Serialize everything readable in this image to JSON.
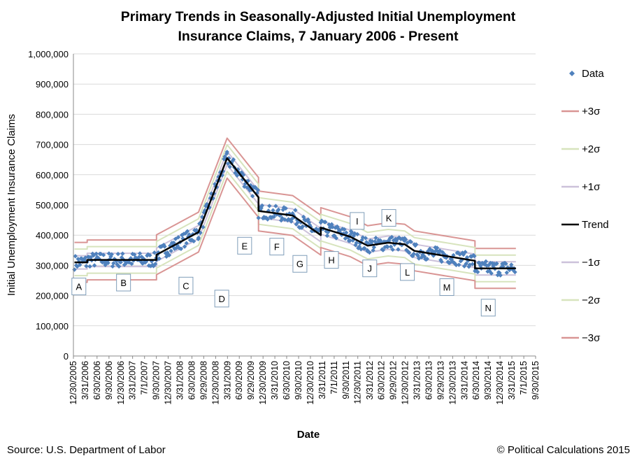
{
  "chart_data": {
    "type": "line",
    "title_line1": "Primary Trends in Seasonally-Adjusted Initial Unemployment",
    "title_line2": "Insurance Claims, 7 January 2006 - Present",
    "xlabel": "Date",
    "ylabel": "Initial Unemployment Insurance Claims",
    "ylim": [
      0,
      1000000
    ],
    "y_ticks": [
      0,
      100000,
      200000,
      300000,
      400000,
      500000,
      600000,
      700000,
      800000,
      900000,
      1000000
    ],
    "y_tick_labels": [
      "0",
      "100,000",
      "200,000",
      "300,000",
      "400,000",
      "500,000",
      "600,000",
      "700,000",
      "800,000",
      "900,000",
      "1,000,000"
    ],
    "x_range": [
      "2005-12-30",
      "2015-09-30"
    ],
    "x_tick_dates": [
      "2005-12-30",
      "2006-03-31",
      "2006-06-30",
      "2006-09-30",
      "2006-12-30",
      "2007-03-31",
      "2007-07-01",
      "2007-09-30",
      "2007-12-30",
      "2008-03-31",
      "2008-06-30",
      "2008-09-29",
      "2008-12-30",
      "2009-03-31",
      "2009-06-30",
      "2009-09-29",
      "2009-12-30",
      "2010-03-31",
      "2010-06-30",
      "2010-09-30",
      "2010-12-30",
      "2011-03-31",
      "2011-07-01",
      "2011-09-30",
      "2011-12-30",
      "2012-03-31",
      "2012-06-30",
      "2012-09-29",
      "2012-12-30",
      "2013-03-31",
      "2013-06-30",
      "2013-09-29",
      "2013-12-30",
      "2014-03-31",
      "2014-06-30",
      "2014-09-30",
      "2014-12-30",
      "2015-03-31",
      "2015-07-01",
      "2015-09-30"
    ],
    "x_tick_labels": [
      "12/30/2005",
      "3/31/2006",
      "6/30/2006",
      "9/30/2006",
      "12/30/2006",
      "3/31/2007",
      "7/1/2007",
      "9/30/2007",
      "12/30/2007",
      "3/31/2008",
      "6/30/2008",
      "9/29/2008",
      "12/30/2008",
      "3/31/2009",
      "6/30/2009",
      "9/29/2009",
      "12/30/2009",
      "3/31/2010",
      "6/30/2010",
      "9/30/2010",
      "12/30/2010",
      "3/31/2011",
      "7/1/2011",
      "9/30/2011",
      "12/30/2011",
      "3/31/2012",
      "6/30/2012",
      "9/29/2012",
      "12/30/2012",
      "3/31/2013",
      "6/30/2013",
      "9/29/2013",
      "12/30/2013",
      "3/31/2014",
      "6/30/2014",
      "9/30/2014",
      "12/30/2014",
      "3/31/2015",
      "7/1/2015",
      "9/30/2015"
    ],
    "grid": "horizontal",
    "legend_position": "right",
    "sigma": 22000,
    "trend_segments": [
      {
        "label": "A",
        "start": "2006-01-07",
        "end": "2006-04-15",
        "y_start": 310000,
        "y_end": 310000
      },
      {
        "label": "B",
        "start": "2006-04-15",
        "end": "2007-10-01",
        "y_start": 318000,
        "y_end": 318000
      },
      {
        "label": "C",
        "start": "2007-10-01",
        "end": "2008-08-20",
        "y_start": 335000,
        "y_end": 410000
      },
      {
        "label": "D",
        "start": "2008-08-20",
        "end": "2009-03-28",
        "y_start": 410000,
        "y_end": 655000
      },
      {
        "label": "E",
        "start": "2009-03-28",
        "end": "2009-11-25",
        "y_start": 655000,
        "y_end": 525000
      },
      {
        "label": "F",
        "start": "2009-11-25",
        "end": "2010-08-15",
        "y_start": 480000,
        "y_end": 465000
      },
      {
        "label": "G",
        "start": "2010-08-15",
        "end": "2011-03-20",
        "y_start": 465000,
        "y_end": 400000
      },
      {
        "label": "H",
        "start": "2011-03-20",
        "end": "2011-11-01",
        "y_start": 425000,
        "y_end": 395000
      },
      {
        "label": "I",
        "start": "2011-11-01",
        "end": "2012-03-15",
        "y_start": 395000,
        "y_end": 365000
      },
      {
        "label": "J",
        "start": "2012-03-15",
        "end": "2012-08-20",
        "y_start": 365000,
        "y_end": 375000
      },
      {
        "label": "K",
        "start": "2012-08-20",
        "end": "2012-12-25",
        "y_start": 375000,
        "y_end": 370000
      },
      {
        "label": "L",
        "start": "2012-12-25",
        "end": "2013-03-10",
        "y_start": 370000,
        "y_end": 348000
      },
      {
        "label": "M",
        "start": "2013-03-10",
        "end": "2014-06-20",
        "y_start": 348000,
        "y_end": 315000
      },
      {
        "label": "N",
        "start": "2014-06-20",
        "end": "2015-05-01",
        "y_start": 290000,
        "y_end": 290000
      }
    ],
    "annotations": [
      {
        "text": "A",
        "x": "2006-02-10",
        "y": 230000
      },
      {
        "text": "B",
        "x": "2007-01-20",
        "y": 243000
      },
      {
        "text": "C",
        "x": "2008-05-15",
        "y": 233000
      },
      {
        "text": "D",
        "x": "2009-02-15",
        "y": 190000
      },
      {
        "text": "E",
        "x": "2009-08-10",
        "y": 365000
      },
      {
        "text": "F",
        "x": "2010-04-15",
        "y": 362000
      },
      {
        "text": "G",
        "x": "2010-10-10",
        "y": 305000
      },
      {
        "text": "H",
        "x": "2011-06-10",
        "y": 318000
      },
      {
        "text": "I",
        "x": "2011-12-25",
        "y": 447000
      },
      {
        "text": "J",
        "x": "2012-03-31",
        "y": 290000
      },
      {
        "text": "K",
        "x": "2012-08-25",
        "y": 457000
      },
      {
        "text": "L",
        "x": "2013-01-15",
        "y": 278000
      },
      {
        "text": "M",
        "x": "2013-11-15",
        "y": 228000
      },
      {
        "text": "N",
        "x": "2014-09-30",
        "y": 160000
      }
    ],
    "series": [
      {
        "name": "Data",
        "style": "diamond-markers",
        "color": "#4f81bd"
      },
      {
        "name": "+3σ",
        "color": "#d99594",
        "sigma_multiple": 3
      },
      {
        "name": "+2σ",
        "color": "#d7e4bd",
        "sigma_multiple": 2
      },
      {
        "name": "+1σ",
        "color": "#ccc1da",
        "sigma_multiple": 1
      },
      {
        "name": "Trend",
        "color": "#000000",
        "sigma_multiple": 0
      },
      {
        "name": "−1σ",
        "color": "#ccc1da",
        "sigma_multiple": -1
      },
      {
        "name": "−2σ",
        "color": "#d7e4bd",
        "sigma_multiple": -2
      },
      {
        "name": "−3σ",
        "color": "#d99594",
        "sigma_multiple": -3
      }
    ]
  },
  "footer": {
    "source": "Source: U.S. Department of Labor",
    "copyright": "© Political Calculations 2015"
  }
}
